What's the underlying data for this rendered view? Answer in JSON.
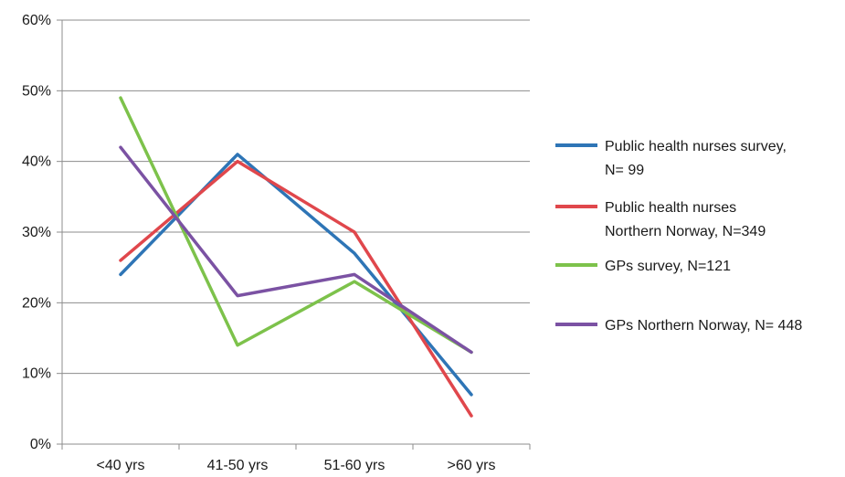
{
  "chart_data": {
    "type": "line",
    "title": "",
    "xlabel": "",
    "ylabel": "",
    "categories": [
      "<40 yrs",
      "41-50 yrs",
      "51-60 yrs",
      ">60 yrs"
    ],
    "ylim": [
      0,
      60
    ],
    "yticks": [
      "0%",
      "10%",
      "20%",
      "30%",
      "40%",
      "50%",
      "60%"
    ],
    "grid": true,
    "legend_position": "right",
    "series": [
      {
        "name": "Public health nurses survey, N= 99",
        "legend_lines": [
          "Public health nurses survey,",
          "N= 99"
        ],
        "color": "#2E75B6",
        "values": [
          24,
          41,
          27,
          7
        ]
      },
      {
        "name": "Public health nurses Northern Norway, N=349",
        "legend_lines": [
          "Public health nurses",
          "Northern Norway, N=349"
        ],
        "color": "#E0474C",
        "values": [
          26,
          40,
          30,
          4
        ]
      },
      {
        "name": "GPs survey, N=121",
        "legend_lines": [
          "GPs survey, N=121"
        ],
        "color": "#7DC24B",
        "values": [
          49,
          14,
          23,
          13
        ]
      },
      {
        "name": "GPs Northern Norway, N= 448",
        "legend_lines": [
          "GPs Northern Norway, N= 448"
        ],
        "color": "#7B52A3",
        "values": [
          42,
          21,
          24,
          13
        ]
      }
    ]
  }
}
